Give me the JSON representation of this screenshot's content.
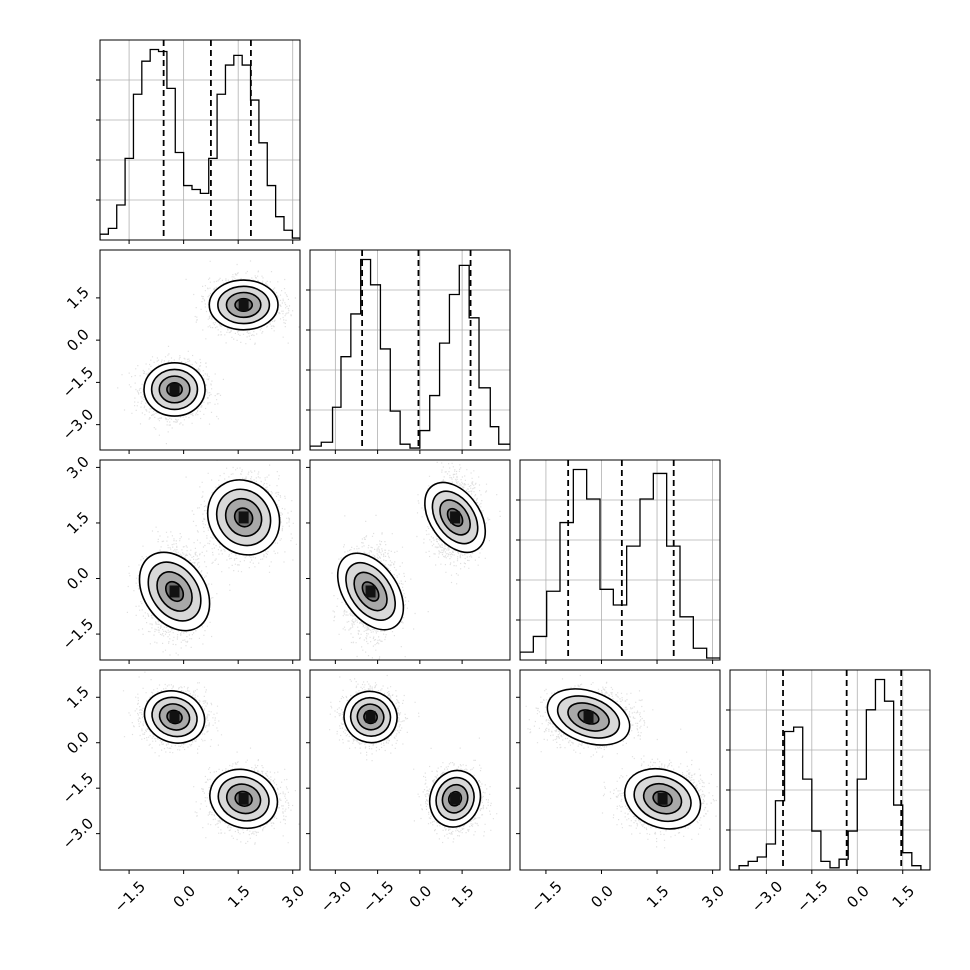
{
  "chart_data": {
    "type": "corner",
    "description_free": true,
    "grid": true,
    "parameters": [
      {
        "range": [
          -2.3,
          3.2
        ],
        "ticks": [
          -1.5,
          0.0,
          1.5,
          3.0
        ],
        "tick_labels": [
          "−1.5",
          "0.0",
          "1.5",
          "3.0"
        ],
        "quantile_lines": [
          -0.55,
          0.75,
          1.85
        ],
        "hist_edges": [
          -2.3,
          -2.07,
          -1.84,
          -1.61,
          -1.38,
          -1.15,
          -0.92,
          -0.69,
          -0.46,
          -0.23,
          0.0,
          0.23,
          0.46,
          0.69,
          0.92,
          1.15,
          1.38,
          1.61,
          1.84,
          2.07,
          2.3,
          2.53,
          2.76,
          2.99,
          3.2
        ],
        "hist_counts": [
          3,
          6,
          18,
          42,
          75,
          92,
          98,
          97,
          78,
          45,
          28,
          26,
          24,
          42,
          75,
          90,
          95,
          90,
          72,
          50,
          28,
          12,
          5,
          1
        ]
      },
      {
        "range": [
          -3.9,
          3.2
        ],
        "ticks": [
          -3.0,
          -1.5,
          0.0,
          1.5
        ],
        "tick_labels": [
          "−3.0",
          "−1.5",
          "0.0",
          "1.5"
        ],
        "quantile_lines": [
          -2.05,
          -0.05,
          1.8
        ],
        "hist_edges": [
          -3.9,
          -3.5,
          -3.1,
          -2.8,
          -2.45,
          -2.1,
          -1.75,
          -1.4,
          -1.05,
          -0.7,
          -0.35,
          0.0,
          0.35,
          0.7,
          1.05,
          1.4,
          1.75,
          2.1,
          2.5,
          2.8,
          3.2
        ],
        "hist_counts": [
          2,
          4,
          22,
          48,
          70,
          98,
          85,
          52,
          20,
          3,
          1,
          10,
          28,
          55,
          80,
          95,
          68,
          32,
          12,
          3
        ]
      },
      {
        "range": [
          -2.2,
          3.2
        ],
        "ticks": [
          -1.5,
          0.0,
          1.5,
          3.0
        ],
        "tick_labels": [
          "−1.5",
          "0.0",
          "1.5",
          "3.0"
        ],
        "quantile_lines": [
          -0.9,
          0.55,
          1.95
        ],
        "hist_edges": [
          -2.2,
          -1.84,
          -1.48,
          -1.12,
          -0.76,
          -0.4,
          -0.04,
          0.32,
          0.68,
          1.04,
          1.4,
          1.76,
          2.12,
          2.48,
          2.84,
          3.2
        ],
        "hist_counts": [
          4,
          12,
          35,
          70,
          97,
          82,
          36,
          28,
          58,
          82,
          95,
          58,
          22,
          6,
          1
        ]
      },
      {
        "range": [
          -4.2,
          2.4
        ],
        "ticks": [
          -3.0,
          -1.5,
          0.0,
          1.5
        ],
        "tick_labels": [
          "−3.0",
          "−1.5",
          "0.0",
          "1.5"
        ],
        "quantile_lines": [
          -2.45,
          -0.35,
          1.45
        ],
        "hist_edges": [
          -4.2,
          -3.9,
          -3.6,
          -3.3,
          -3.0,
          -2.7,
          -2.4,
          -2.1,
          -1.8,
          -1.5,
          -1.2,
          -0.9,
          -0.6,
          -0.3,
          0.0,
          0.3,
          0.6,
          0.9,
          1.2,
          1.5,
          1.8,
          2.1,
          2.4
        ],
        "hist_counts": [
          0,
          2,
          4,
          6,
          12,
          32,
          64,
          66,
          42,
          18,
          4,
          1,
          5,
          18,
          42,
          74,
          88,
          78,
          30,
          8,
          2,
          0
        ]
      }
    ],
    "clusters": [
      {
        "mean": [
          -0.25,
          -1.75,
          -0.35,
          0.85
        ],
        "sd": [
          0.4,
          0.45,
          0.55,
          0.4
        ]
      },
      {
        "mean": [
          1.65,
          1.25,
          1.65,
          -1.85
        ],
        "sd": [
          0.45,
          0.42,
          0.5,
          0.45
        ]
      }
    ],
    "contour_levels_sigma": [
      0.5,
      1.0,
      1.5,
      2.0
    ]
  }
}
